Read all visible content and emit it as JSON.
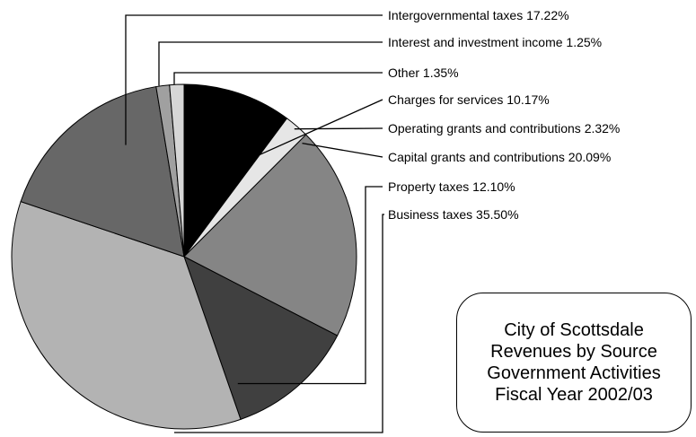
{
  "chart_data": {
    "type": "pie",
    "title_lines": [
      "City of Scottsdale",
      "Revenues by Source",
      "Government Activities",
      "Fiscal Year 2002/03"
    ],
    "slices": [
      {
        "label": "Charges for services",
        "value": 10.17,
        "display": "Charges for services 10.17%",
        "color": "#000000"
      },
      {
        "label": "Operating grants and contributions",
        "value": 2.32,
        "display": "Operating grants and contributions 2.32%",
        "color": "#e6e6e6"
      },
      {
        "label": "Capital grants and contributions",
        "value": 20.09,
        "display": "Capital grants and contributions 20.09%",
        "color": "#858585"
      },
      {
        "label": "Property taxes",
        "value": 12.1,
        "display": "Property taxes 12.10%",
        "color": "#404040"
      },
      {
        "label": "Business taxes",
        "value": 35.5,
        "display": "Business taxes 35.50%",
        "color": "#b3b3b3"
      },
      {
        "label": "Intergovernmental taxes",
        "value": 17.22,
        "display": "Intergovernmental taxes 17.22%",
        "color": "#676767"
      },
      {
        "label": "Interest and investment income",
        "value": 1.25,
        "display": "Interest and investment income 1.25%",
        "color": "#a0a0a0"
      },
      {
        "label": "Other",
        "value": 1.35,
        "display": "Other 1.35%",
        "color": "#d6d6d6"
      }
    ],
    "legend_order": [
      "Intergovernmental taxes",
      "Interest and investment income",
      "Other",
      "Charges for services",
      "Operating grants and contributions",
      "Capital grants and contributions",
      "Property taxes",
      "Business taxes"
    ],
    "start_angle_deg": 0,
    "direction": "clockwise"
  }
}
